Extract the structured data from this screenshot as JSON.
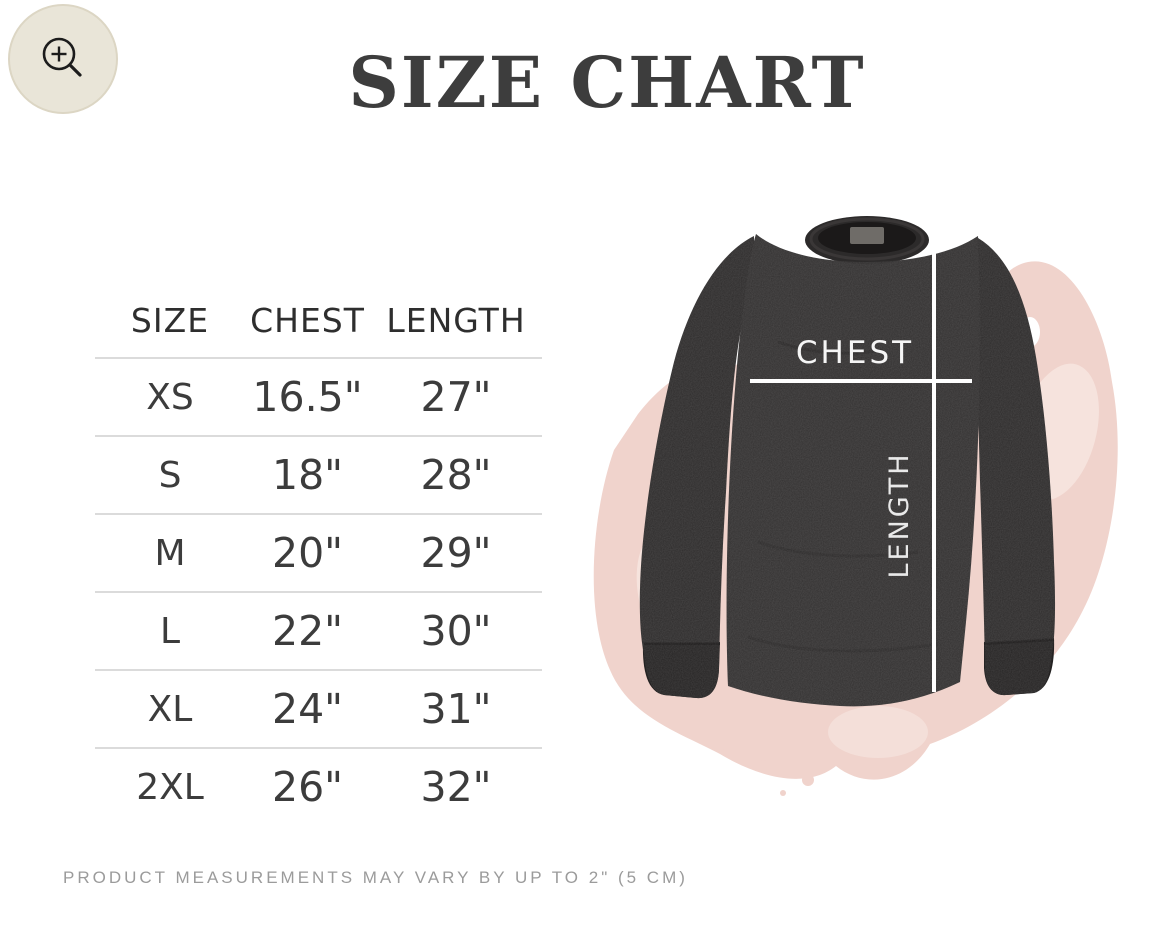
{
  "lightbox": {
    "zoom_button_icon": "zoom-in-icon"
  },
  "title": "SIZE CHART",
  "size_table": {
    "headers": [
      "SIZE",
      "CHEST",
      "LENGTH"
    ],
    "rows": [
      [
        "XS",
        "16.5\"",
        "27\""
      ],
      [
        "S",
        "18\"",
        "28\""
      ],
      [
        "M",
        "20\"",
        "29\""
      ],
      [
        "L",
        "22\"",
        "30\""
      ],
      [
        "XL",
        "24\"",
        "31\""
      ],
      [
        "2XL",
        "26\"",
        "32\""
      ]
    ]
  },
  "diagram": {
    "chest_label": "CHEST",
    "length_label": "LENGTH",
    "garment_alt": "black long sleeve tee with measurement lines",
    "colors": {
      "shirt": "#2c2a2a",
      "splash_pink": "#f0d3cc",
      "measure_line": "#ffffff"
    }
  },
  "footer_note": "PRODUCT MEASUREMENTS MAY VARY BY UP TO 2\" (5 CM)"
}
